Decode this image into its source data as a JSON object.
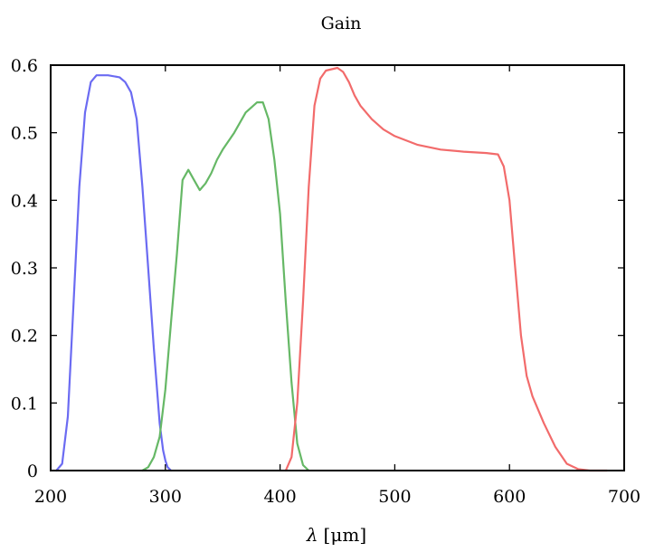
{
  "chart_data": {
    "type": "line",
    "title": "Gain",
    "xlabel_symbol": "λ",
    "xlabel_unit": "[μm]",
    "ylabel": "",
    "xlim": [
      200,
      700
    ],
    "ylim": [
      0,
      0.6
    ],
    "xticks": [
      200,
      300,
      400,
      500,
      600,
      700
    ],
    "xtick_labels": [
      "200",
      "300",
      "400",
      "500",
      "600",
      "700"
    ],
    "yticks": [
      0,
      0.1,
      0.2,
      0.3,
      0.4,
      0.5,
      0.6
    ],
    "ytick_labels": [
      "0",
      "0.1",
      "0.2",
      "0.3",
      "0.4",
      "0.5",
      "0.6"
    ],
    "grid": false,
    "legend": "none",
    "series": [
      {
        "color": "#6b6bf2",
        "x": [
          205,
          210,
          215,
          220,
          225,
          230,
          235,
          240,
          250,
          260,
          265,
          270,
          275,
          280,
          285,
          290,
          295,
          298,
          300,
          302,
          305
        ],
        "y": [
          0,
          0.01,
          0.08,
          0.25,
          0.42,
          0.53,
          0.575,
          0.585,
          0.585,
          0.582,
          0.575,
          0.56,
          0.52,
          0.42,
          0.3,
          0.18,
          0.07,
          0.03,
          0.015,
          0.005,
          0
        ]
      },
      {
        "color": "#66b866",
        "x": [
          280,
          285,
          290,
          295,
          300,
          305,
          310,
          315,
          320,
          325,
          330,
          335,
          340,
          345,
          350,
          360,
          370,
          380,
          385,
          390,
          395,
          400,
          405,
          410,
          415,
          420,
          425
        ],
        "y": [
          0,
          0.005,
          0.02,
          0.05,
          0.12,
          0.22,
          0.32,
          0.43,
          0.445,
          0.43,
          0.415,
          0.425,
          0.44,
          0.46,
          0.475,
          0.5,
          0.53,
          0.545,
          0.545,
          0.52,
          0.46,
          0.38,
          0.25,
          0.13,
          0.04,
          0.008,
          0
        ]
      },
      {
        "color": "#f26b6b",
        "x": [
          405,
          410,
          415,
          420,
          425,
          430,
          435,
          440,
          450,
          455,
          460,
          465,
          470,
          480,
          490,
          500,
          520,
          540,
          560,
          580,
          590,
          595,
          600,
          605,
          610,
          615,
          620,
          630,
          640,
          650,
          660,
          670,
          680,
          685
        ],
        "y": [
          0,
          0.02,
          0.1,
          0.25,
          0.42,
          0.54,
          0.58,
          0.592,
          0.596,
          0.59,
          0.575,
          0.555,
          0.54,
          0.52,
          0.505,
          0.495,
          0.482,
          0.475,
          0.472,
          0.47,
          0.468,
          0.45,
          0.4,
          0.3,
          0.2,
          0.14,
          0.11,
          0.07,
          0.035,
          0.01,
          0.002,
          0,
          0,
          0
        ]
      }
    ]
  }
}
